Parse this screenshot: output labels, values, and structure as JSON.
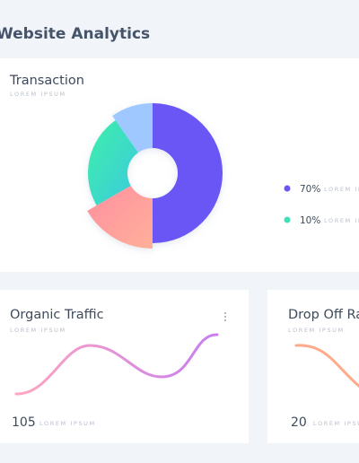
{
  "header": {
    "title": "Website Analytics"
  },
  "transaction": {
    "title": "Transaction",
    "subtitle": "LOREM IPSUM",
    "legend": [
      {
        "value": "70%",
        "label": "LOREM IPSUM"
      },
      {
        "value": "10%",
        "label": "LOREM IPSUM"
      }
    ]
  },
  "organic_traffic": {
    "title": "Organic Traffic",
    "subtitle": "LOREM IPSUM",
    "stat": "105",
    "stat_label": "LOREM IPSUM"
  },
  "drop_off": {
    "title": "Drop Off Rate",
    "subtitle": "LOREM IPSUM",
    "stat": "20",
    "stat_label": "LOREM IPSUM"
  }
}
